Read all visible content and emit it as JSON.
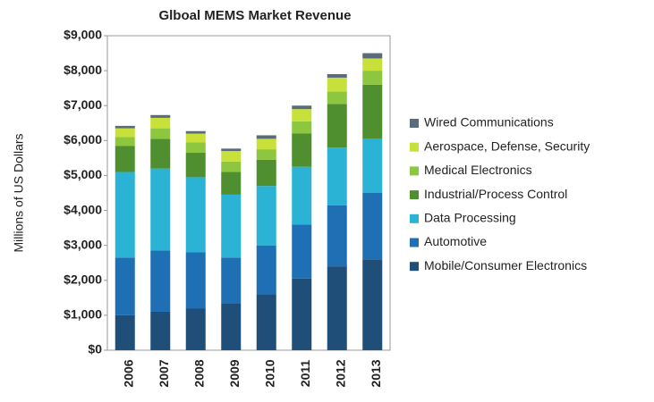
{
  "chart_data": {
    "type": "stacked_bar",
    "title": "Glboal MEMS Market Revenue",
    "y_label": "Millions of US Dollars",
    "categories": [
      "2006",
      "2007",
      "2008",
      "2009",
      "2010",
      "2011",
      "2012",
      "2013"
    ],
    "series": [
      {
        "name": "Mobile/Consumer Electronics",
        "color": "#1f4e79",
        "values": [
          1000,
          1100,
          1200,
          1350,
          1600,
          2050,
          2400,
          2600
        ]
      },
      {
        "name": "Automotive",
        "color": "#1f6fb5",
        "values": [
          1650,
          1750,
          1600,
          1300,
          1400,
          1550,
          1750,
          1900
        ]
      },
      {
        "name": "Data Processing",
        "color": "#2bb3d6",
        "values": [
          2450,
          2350,
          2150,
          1800,
          1700,
          1650,
          1650,
          1550
        ]
      },
      {
        "name": "Industrial/Process Control",
        "color": "#4f8f2f",
        "values": [
          750,
          850,
          700,
          650,
          750,
          950,
          1250,
          1550
        ]
      },
      {
        "name": "Medical Electronics",
        "color": "#8dc63f",
        "values": [
          250,
          300,
          300,
          300,
          300,
          350,
          350,
          400
        ]
      },
      {
        "name": "Aerospace, Defense, Security",
        "color": "#c8e03a",
        "values": [
          250,
          300,
          250,
          300,
          300,
          350,
          400,
          350
        ]
      },
      {
        "name": "Wired Communications",
        "color": "#5a6b7a",
        "values": [
          70,
          80,
          70,
          70,
          100,
          100,
          100,
          150
        ]
      }
    ],
    "ylim": [
      0,
      9000
    ],
    "yticks": [
      {
        "value": 0,
        "label": "$0"
      },
      {
        "value": 1000,
        "label": "$1,000"
      },
      {
        "value": 2000,
        "label": "$2,000"
      },
      {
        "value": 3000,
        "label": "$3,000"
      },
      {
        "value": 4000,
        "label": "$4,000"
      },
      {
        "value": 5000,
        "label": "$5,000"
      },
      {
        "value": 6000,
        "label": "$6,000"
      },
      {
        "value": 7000,
        "label": "$7,000"
      },
      {
        "value": 8000,
        "label": "$8,000"
      },
      {
        "value": 9000,
        "label": "$9,000"
      }
    ],
    "legend": "right"
  }
}
